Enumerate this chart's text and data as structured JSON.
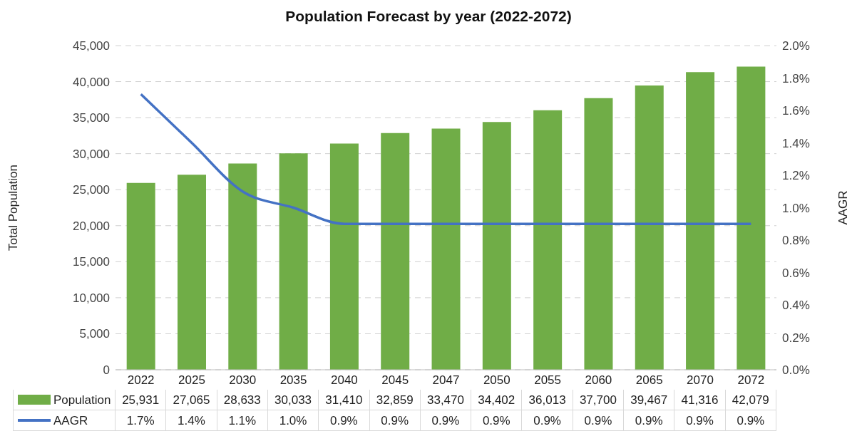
{
  "chart_data": {
    "type": "bar",
    "title": "Population Forecast by year (2022-2072)",
    "ylabel": "Total Population",
    "y2label": "AAGR",
    "categories": [
      "2022",
      "2025",
      "2030",
      "2035",
      "2040",
      "2045",
      "2047",
      "2050",
      "2055",
      "2060",
      "2065",
      "2070",
      "2072"
    ],
    "series": [
      {
        "name": "Population",
        "color": "#70ad47",
        "values": [
          25931,
          27065,
          28633,
          30033,
          31410,
          32859,
          33470,
          34402,
          36013,
          37700,
          39467,
          41316,
          42079
        ],
        "value_labels": [
          "25,931",
          "27,065",
          "28,633",
          "30,033",
          "31,410",
          "32,859",
          "33,470",
          "34,402",
          "36,013",
          "37,700",
          "39,467",
          "41,316",
          "42,079"
        ]
      },
      {
        "name": "AAGR",
        "type": "line",
        "axis": "y2",
        "color": "#4472c4",
        "values": [
          1.7,
          1.4,
          1.1,
          1.0,
          0.9,
          0.9,
          0.9,
          0.9,
          0.9,
          0.9,
          0.9,
          0.9,
          0.9
        ],
        "value_labels": [
          "1.7%",
          "1.4%",
          "1.1%",
          "1.0%",
          "0.9%",
          "0.9%",
          "0.9%",
          "0.9%",
          "0.9%",
          "0.9%",
          "0.9%",
          "0.9%",
          "0.9%"
        ]
      }
    ],
    "ylim": [
      0,
      45000
    ],
    "yticks": [
      {
        "value": 0,
        "label": "0"
      },
      {
        "value": 5000,
        "label": "5,000"
      },
      {
        "value": 10000,
        "label": "10,000"
      },
      {
        "value": 15000,
        "label": "15,000"
      },
      {
        "value": 20000,
        "label": "20,000"
      },
      {
        "value": 25000,
        "label": "25,000"
      },
      {
        "value": 30000,
        "label": "30,000"
      },
      {
        "value": 35000,
        "label": "35,000"
      },
      {
        "value": 40000,
        "label": "40,000"
      },
      {
        "value": 45000,
        "label": "45,000"
      }
    ],
    "y2lim": [
      0,
      2
    ],
    "y2ticks": [
      {
        "value": 0,
        "label": "0.0%"
      },
      {
        "value": 0.2,
        "label": "0.2%"
      },
      {
        "value": 0.4,
        "label": "0.4%"
      },
      {
        "value": 0.6,
        "label": "0.6%"
      },
      {
        "value": 0.8,
        "label": "0.8%"
      },
      {
        "value": 1.0,
        "label": "1.0%"
      },
      {
        "value": 1.2,
        "label": "1.2%"
      },
      {
        "value": 1.4,
        "label": "1.4%"
      },
      {
        "value": 1.6,
        "label": "1.6%"
      },
      {
        "value": 1.8,
        "label": "1.8%"
      },
      {
        "value": 2.0,
        "label": "2.0%"
      }
    ],
    "grid": "y",
    "legend": "bottom",
    "marker": "none",
    "line_style": "solid"
  }
}
